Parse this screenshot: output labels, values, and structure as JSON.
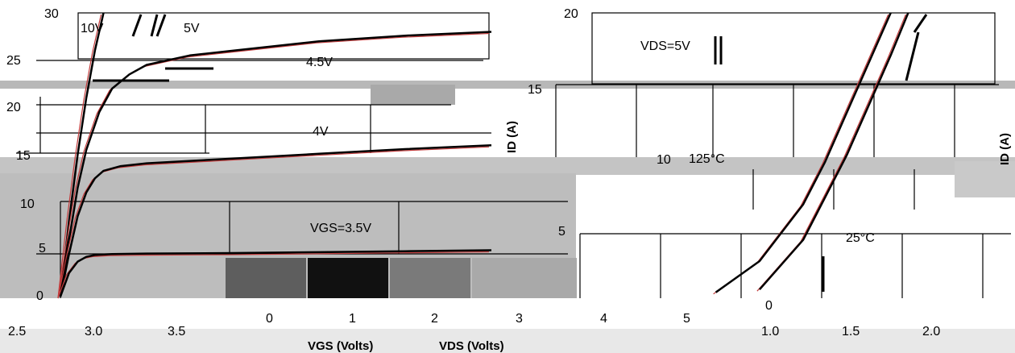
{
  "chart_data": [
    {
      "type": "line",
      "title": "",
      "xlabel": "VDS (Volts)",
      "ylabel": "",
      "xlim": [
        0,
        5
      ],
      "ylim": [
        0,
        30
      ],
      "xticks": [
        "0",
        "1",
        "2",
        "3",
        "4",
        "5"
      ],
      "yticks": [
        "0",
        "5",
        "10",
        "15",
        "20",
        "25",
        "30"
      ],
      "grid": true,
      "legend": "none",
      "annotations": {
        "v10": "10V",
        "v5": "5V",
        "v45": "4.5V",
        "v4": "4V",
        "vgs": "VGS=3.5V"
      },
      "series": [
        {
          "name": "10V",
          "x": [
            0,
            0.1,
            0.2,
            0.3,
            0.4,
            0.5
          ],
          "y": [
            0,
            8,
            15,
            21,
            26,
            30
          ]
        },
        {
          "name": "5V",
          "x": [
            0,
            0.1,
            0.2,
            0.3,
            0.45,
            0.6,
            0.8,
            1.0,
            1.5,
            2.0,
            3.0,
            4.0,
            5.0
          ],
          "y": [
            0,
            6,
            11.5,
            15.5,
            19.5,
            22,
            23.5,
            24.5,
            25.5,
            26,
            27,
            27.6,
            28
          ]
        },
        {
          "name": "4V",
          "x": [
            0,
            0.1,
            0.2,
            0.3,
            0.4,
            0.5,
            0.7,
            1.0,
            2.0,
            3.0,
            4.0,
            5.0
          ],
          "y": [
            0,
            4.5,
            8.5,
            11,
            12.5,
            13.3,
            13.8,
            14.1,
            14.6,
            15.1,
            15.6,
            16
          ]
        },
        {
          "name": "3.5V",
          "x": [
            0,
            0.1,
            0.2,
            0.3,
            0.4,
            0.6,
            1.0,
            2.0,
            3.0,
            4.0,
            5.0
          ],
          "y": [
            0,
            2.5,
            3.7,
            4.2,
            4.4,
            4.5,
            4.55,
            4.6,
            4.7,
            4.8,
            4.9
          ]
        }
      ]
    },
    {
      "type": "line",
      "title": "",
      "xlabel": "VGS (Volts)",
      "ylabel": "ID (A)",
      "xlim": [
        0.5,
        4.0
      ],
      "ylim": [
        0,
        20
      ],
      "xticks": [
        "2.5",
        "3.0",
        "3.5"
      ],
      "yticks": [
        "0",
        "5",
        "10",
        "15",
        "20"
      ],
      "grid": true,
      "legend": "none",
      "annotations": {
        "vds": "VDS=5V",
        "hot": "125°C",
        "cold": "25°C"
      },
      "series": [
        {
          "name": "125°C",
          "x": [
            1.5,
            2.0,
            2.5,
            2.75,
            3.0,
            3.25,
            3.5
          ],
          "y": [
            0.3,
            2.5,
            6.5,
            9.5,
            13,
            16.5,
            20
          ]
        },
        {
          "name": "25°C",
          "x": [
            2.0,
            2.5,
            2.75,
            3.0,
            3.25,
            3.5,
            3.7
          ],
          "y": [
            0.5,
            4,
            7,
            10,
            13.5,
            17,
            20
          ]
        }
      ]
    }
  ],
  "scan_labels": {
    "y30": "30",
    "y25": "25",
    "y20": "20",
    "y15": "15",
    "y10": "10",
    "y5": "5",
    "y0": "0",
    "yr20": "20",
    "yr15": "15",
    "yr10": "10",
    "yr5": "5",
    "yr0": "0",
    "xa0": "0",
    "xa1": "1",
    "xa2": "2",
    "xa3": "3",
    "xa4": "4",
    "xa5": "5",
    "xb25": "2.5",
    "xb30": "3.0",
    "xb35": "3.5",
    "xc10": "1.0",
    "xc15": "1.5",
    "xc20": "2.0",
    "vds_axis": "VDS (Volts)",
    "vgs_axis": "VGS (Volts)",
    "id_left": "ID (A)",
    "id_right": "ID (A)"
  }
}
